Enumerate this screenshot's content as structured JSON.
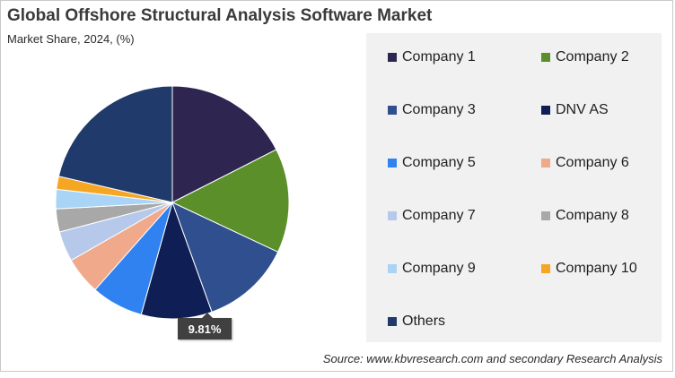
{
  "header": {
    "title": "Global Offshore Structural Analysis Software Market",
    "subtitle": "Market Share, 2024, (%)"
  },
  "source": "Source: www.kbvresearch.com and secondary Research Analysis",
  "chart_data": {
    "type": "pie",
    "start_angle_deg": 0,
    "direction": "clockwise",
    "slices": [
      {
        "label": "Company 1",
        "value": 17.5,
        "color": "#2e2550"
      },
      {
        "label": "Company 2",
        "value": 14.5,
        "color": "#5b8f2a"
      },
      {
        "label": "Company 3",
        "value": 12.5,
        "color": "#2f4f8f"
      },
      {
        "label": "DNV AS",
        "value": 9.81,
        "color": "#0f1f55",
        "data_label": "9.81%"
      },
      {
        "label": "Company 5",
        "value": 7.2,
        "color": "#2f82f0"
      },
      {
        "label": "Company 6",
        "value": 5.2,
        "color": "#f0a98a"
      },
      {
        "label": "Company 7",
        "value": 4.2,
        "color": "#b7c9ea"
      },
      {
        "label": "Company 8",
        "value": 3.2,
        "color": "#a8a8a8"
      },
      {
        "label": "Company 9",
        "value": 2.7,
        "color": "#a9d4f5"
      },
      {
        "label": "Company 10",
        "value": 1.8,
        "color": "#f5a623"
      },
      {
        "label": "Others",
        "value": 21.39,
        "color": "#1f3a6b"
      }
    ],
    "legend_position": "right"
  }
}
